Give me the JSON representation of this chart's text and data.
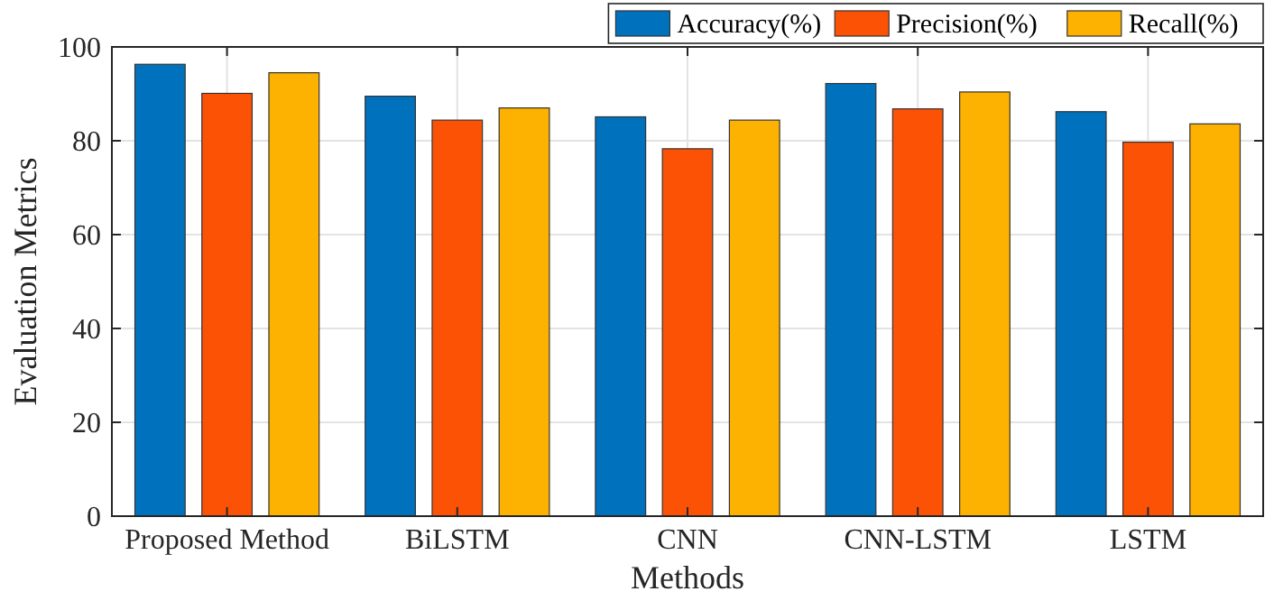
{
  "chart_data": {
    "type": "bar",
    "xlabel": "Methods",
    "ylabel": "Evaluation Metrics",
    "categories": [
      "Proposed Method",
      "BiLSTM",
      "CNN",
      "CNN-LSTM",
      "LSTM"
    ],
    "series": [
      {
        "name": "Accuracy(%)",
        "color": "#0072bd",
        "values": [
          96.3,
          89.5,
          85.1,
          92.2,
          86.2
        ]
      },
      {
        "name": "Precision(%)",
        "color": "#fc5206",
        "values": [
          90.1,
          84.4,
          78.3,
          86.8,
          79.7
        ]
      },
      {
        "name": "Recall(%)",
        "color": "#fdb100",
        "values": [
          94.5,
          87.0,
          84.4,
          90.4,
          83.6
        ]
      }
    ],
    "ylim": [
      0,
      100
    ],
    "yticks": [
      0,
      20,
      40,
      60,
      80,
      100
    ],
    "grid": true,
    "legend": "top right"
  }
}
